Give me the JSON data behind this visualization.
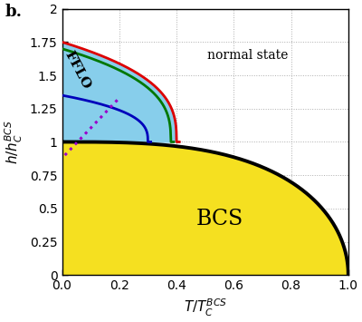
{
  "title_label": "b.",
  "xlabel": "$T/T_C^{BCS}$",
  "ylabel": "$h/h_C^{BCS}$",
  "xlim": [
    0.0,
    1.0
  ],
  "ylim": [
    0.0,
    2.0
  ],
  "yticks": [
    0,
    0.25,
    0.5,
    0.75,
    1.0,
    1.25,
    1.5,
    1.75,
    2.0
  ],
  "xticks": [
    0.0,
    0.2,
    0.4,
    0.6,
    0.8,
    1.0
  ],
  "bcs_color": "#F5E020",
  "fflo_color": "#87CEEB",
  "normal_label": "normal state",
  "bcs_label": "BCS",
  "fflo_label": "FFLO",
  "grid_color": "#999999",
  "red_line_color": "#DD0000",
  "green_line_color": "#007700",
  "blue_line_color": "#0000BB",
  "purple_dotted_color": "#9900CC",
  "black_bcs_boundary_color": "#000000"
}
